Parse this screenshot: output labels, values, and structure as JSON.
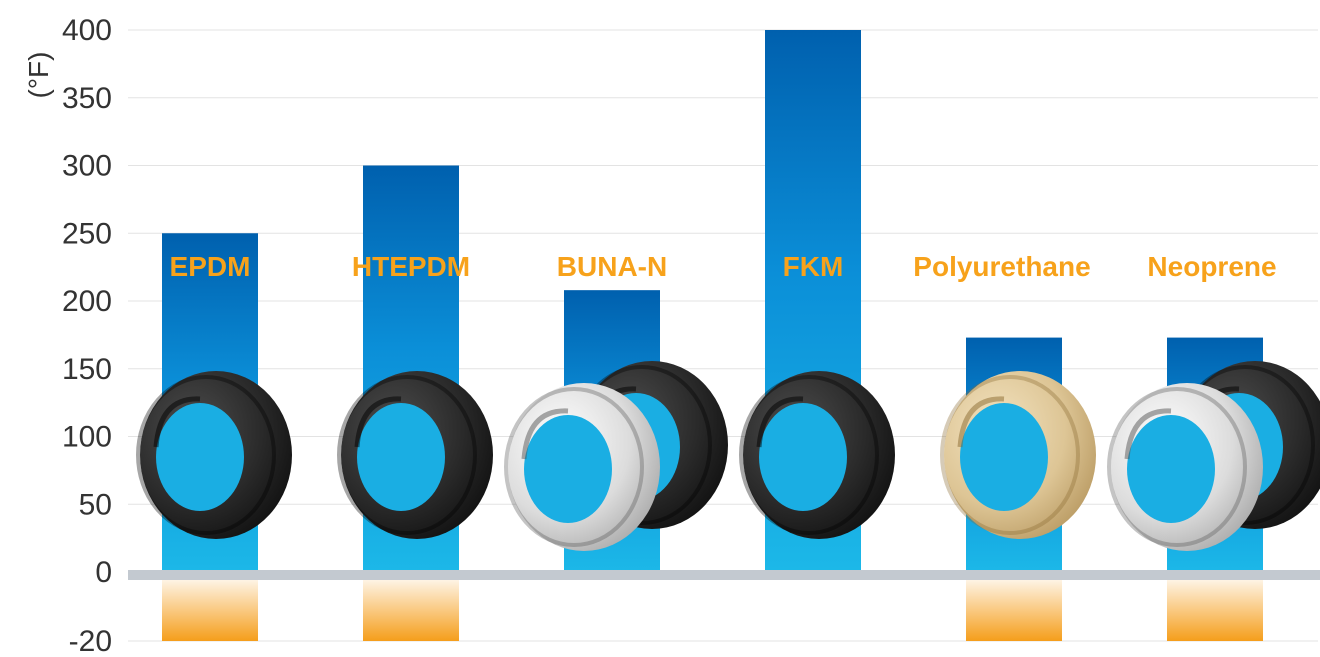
{
  "chart_data": {
    "type": "bar",
    "ylabel": "(°F)",
    "ylim": [
      -20,
      400
    ],
    "yticks": [
      400,
      350,
      300,
      250,
      200,
      150,
      100,
      50,
      0,
      -20
    ],
    "grid": true,
    "categories": [
      "EPDM",
      "HTEPDM",
      "BUNA-N",
      "FKM",
      "Polyurethane",
      "Neoprene"
    ],
    "series": [
      {
        "values": [
          250,
          300,
          208,
          400,
          173,
          173
        ]
      },
      {
        "values": [
          -20,
          -20,
          0,
          0,
          -20,
          -20
        ]
      }
    ],
    "ring_materials": [
      "black",
      "black",
      "white-black",
      "black",
      "amber",
      "white-black"
    ],
    "colors": {
      "bar_top": "#0066b3",
      "bar_bottom": "#1cb5e8",
      "low_top": "#ffffff",
      "low_bottom": "#f59e1b",
      "label": "#f7a21b",
      "zero_line": "#c3c9d0",
      "grid": "#e3e3e3"
    }
  }
}
